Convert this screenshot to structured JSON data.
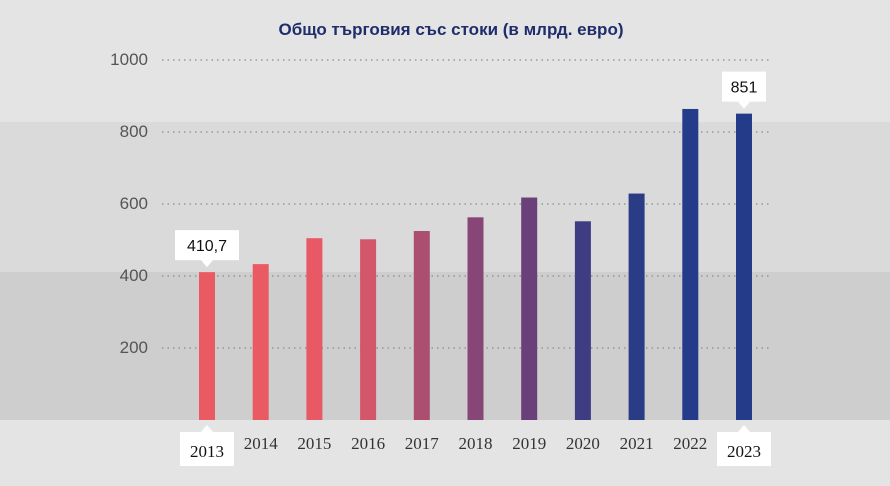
{
  "chart_data": {
    "type": "bar",
    "title": "Общо търговия със стоки (в млрд. евро)",
    "xlabel": "",
    "ylabel": "",
    "categories": [
      "2013",
      "2014",
      "2015",
      "2016",
      "2017",
      "2018",
      "2019",
      "2020",
      "2021",
      "2022",
      "2023"
    ],
    "values": [
      410.7,
      433,
      505,
      502,
      525,
      563,
      618,
      552,
      629,
      864,
      851
    ],
    "ylim": [
      0,
      1000
    ],
    "yticks": [
      200,
      400,
      600,
      800,
      1000
    ],
    "bar_colors": [
      "#ea5a62",
      "#ea5a62",
      "#e85965",
      "#d4566b",
      "#ab4e70",
      "#874675",
      "#6a3f7a",
      "#3e3d83",
      "#2a3c86",
      "#233b88",
      "#233b88"
    ],
    "callouts": [
      {
        "category": "2013",
        "label": "410,7"
      },
      {
        "category": "2023",
        "label": "851"
      }
    ],
    "highlighted_x_labels": [
      "2013",
      "2023"
    ],
    "grid": true,
    "gridline_style": "dotted"
  }
}
